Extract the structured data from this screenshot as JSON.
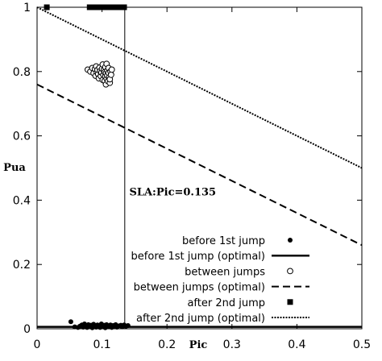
{
  "chart_data": {
    "type": "scatter",
    "title": "",
    "xlabel": "Pic",
    "ylabel": "Pua",
    "xlim": [
      0,
      0.5
    ],
    "ylim": [
      0,
      1
    ],
    "x_ticks": [
      {
        "v": 0,
        "label": "0"
      },
      {
        "v": 0.1,
        "label": "0.1"
      },
      {
        "v": 0.2,
        "label": "0.2"
      },
      {
        "v": 0.3,
        "label": "0.3"
      },
      {
        "v": 0.4,
        "label": "0.4"
      },
      {
        "v": 0.5,
        "label": "0.5"
      }
    ],
    "y_ticks": [
      {
        "v": 0,
        "label": "0"
      },
      {
        "v": 0.2,
        "label": "0.2"
      },
      {
        "v": 0.4,
        "label": "0.4"
      },
      {
        "v": 0.6,
        "label": "0.6"
      },
      {
        "v": 0.8,
        "label": "0.8"
      },
      {
        "v": 1,
        "label": "1"
      }
    ],
    "grid": false,
    "legend_position": "bottom-right",
    "annotation": "SLA:Pic=0.135",
    "vline": {
      "x": 0.135
    },
    "series": [
      {
        "name": "before 1st jump",
        "kind": "points",
        "marker": "filled-circle",
        "points": [
          [
            0.052,
            0.022
          ],
          [
            0.058,
            0.006
          ],
          [
            0.063,
            0.004
          ],
          [
            0.066,
            0.008
          ],
          [
            0.069,
            0.012
          ],
          [
            0.071,
            0.005
          ],
          [
            0.073,
            0.015
          ],
          [
            0.075,
            0.009
          ],
          [
            0.077,
            0.004
          ],
          [
            0.079,
            0.013
          ],
          [
            0.081,
            0.007
          ],
          [
            0.083,
            0.011
          ],
          [
            0.085,
            0.003
          ],
          [
            0.087,
            0.014
          ],
          [
            0.089,
            0.008
          ],
          [
            0.091,
            0.005
          ],
          [
            0.093,
            0.012
          ],
          [
            0.095,
            0.009
          ],
          [
            0.097,
            0.004
          ],
          [
            0.099,
            0.015
          ],
          [
            0.101,
            0.007
          ],
          [
            0.103,
            0.011
          ],
          [
            0.105,
            0.003
          ],
          [
            0.107,
            0.013
          ],
          [
            0.109,
            0.009
          ],
          [
            0.111,
            0.006
          ],
          [
            0.113,
            0.012
          ],
          [
            0.115,
            0.004
          ],
          [
            0.117,
            0.01
          ],
          [
            0.119,
            0.008
          ],
          [
            0.121,
            0.013
          ],
          [
            0.123,
            0.005
          ],
          [
            0.126,
            0.009
          ],
          [
            0.129,
            0.011
          ],
          [
            0.131,
            0.006
          ],
          [
            0.134,
            0.012
          ],
          [
            0.137,
            0.008
          ],
          [
            0.14,
            0.01
          ]
        ]
      },
      {
        "name": "before 1st jump (optimal)",
        "kind": "line",
        "style": "solid",
        "points": [
          [
            0,
            0.006
          ],
          [
            0.5,
            0.006
          ]
        ]
      },
      {
        "name": "between jumps",
        "kind": "points",
        "marker": "open-circle",
        "points": [
          [
            0.078,
            0.806
          ],
          [
            0.082,
            0.8
          ],
          [
            0.085,
            0.811
          ],
          [
            0.087,
            0.795
          ],
          [
            0.089,
            0.808
          ],
          [
            0.09,
            0.787
          ],
          [
            0.091,
            0.816
          ],
          [
            0.092,
            0.798
          ],
          [
            0.093,
            0.805
          ],
          [
            0.094,
            0.792
          ],
          [
            0.095,
            0.779
          ],
          [
            0.096,
            0.812
          ],
          [
            0.097,
            0.801
          ],
          [
            0.098,
            0.786
          ],
          [
            0.099,
            0.797
          ],
          [
            0.1,
            0.809
          ],
          [
            0.101,
            0.774
          ],
          [
            0.101,
            0.822
          ],
          [
            0.102,
            0.79
          ],
          [
            0.103,
            0.806
          ],
          [
            0.104,
            0.771
          ],
          [
            0.104,
            0.798
          ],
          [
            0.105,
            0.785
          ],
          [
            0.105,
            0.814
          ],
          [
            0.106,
            0.76
          ],
          [
            0.106,
            0.795
          ],
          [
            0.107,
            0.778
          ],
          [
            0.107,
            0.824
          ],
          [
            0.108,
            0.803
          ],
          [
            0.108,
            0.788
          ],
          [
            0.109,
            0.77
          ],
          [
            0.11,
            0.811
          ],
          [
            0.11,
            0.796
          ],
          [
            0.111,
            0.782
          ],
          [
            0.112,
            0.765
          ],
          [
            0.112,
            0.776
          ],
          [
            0.113,
            0.8
          ],
          [
            0.114,
            0.79
          ],
          [
            0.115,
            0.806
          ]
        ]
      },
      {
        "name": "between jumps (optimal)",
        "kind": "line",
        "style": "dashed",
        "points": [
          [
            0,
            0.76
          ],
          [
            0.5,
            0.26
          ]
        ]
      },
      {
        "name": "after 2nd jump",
        "kind": "points",
        "marker": "filled-square",
        "points": [
          [
            0.015,
            1.0
          ],
          [
            0.081,
            1.0
          ],
          [
            0.087,
            1.0
          ],
          [
            0.093,
            1.0
          ],
          [
            0.099,
            1.0
          ],
          [
            0.105,
            1.0
          ],
          [
            0.111,
            1.0
          ],
          [
            0.117,
            1.0
          ],
          [
            0.123,
            1.0
          ],
          [
            0.129,
            1.0
          ],
          [
            0.134,
            1.0
          ]
        ]
      },
      {
        "name": "after 2nd jump (optimal)",
        "kind": "line",
        "style": "dotted",
        "points": [
          [
            0,
            1.0
          ],
          [
            0.5,
            0.5
          ]
        ]
      }
    ]
  }
}
